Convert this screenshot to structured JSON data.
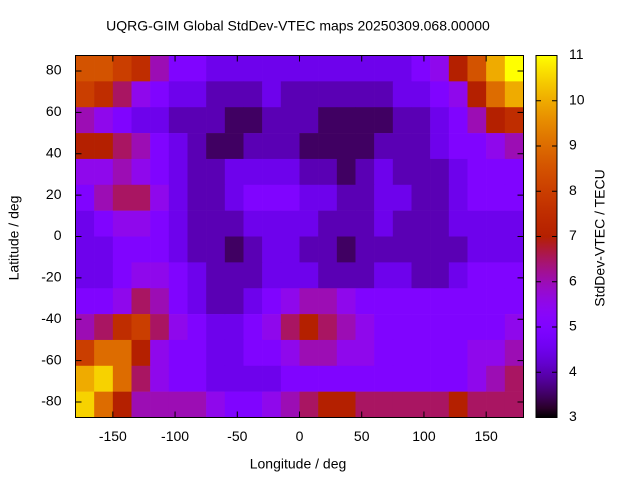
{
  "chart_data": {
    "type": "heatmap",
    "title": "UQRG-GIM Global StdDev-VTEC maps 20250309.068.00000",
    "xlabel": "Longitude / deg",
    "ylabel": "Latitude / deg",
    "colorbar_label": "StdDev-VTEC / TECU",
    "colormap": "gnuplot",
    "xlim": [
      -180,
      180
    ],
    "ylim": [
      -87.5,
      87.5
    ],
    "xticks": [
      -150,
      -100,
      -50,
      0,
      50,
      100,
      150
    ],
    "yticks": [
      -80,
      -60,
      -40,
      -20,
      0,
      20,
      40,
      60,
      80
    ],
    "clim": [
      3,
      11
    ],
    "cticks": [
      3,
      4,
      5,
      6,
      7,
      8,
      9,
      10,
      11
    ],
    "x": [
      -172.5,
      -157.5,
      -142.5,
      -127.5,
      -112.5,
      -97.5,
      -82.5,
      -67.5,
      -52.5,
      -37.5,
      -22.5,
      -7.5,
      7.5,
      22.5,
      37.5,
      52.5,
      67.5,
      82.5,
      97.5,
      112.5,
      127.5,
      142.5,
      157.5,
      172.5
    ],
    "y": [
      81.25,
      68.75,
      56.25,
      43.75,
      31.25,
      18.75,
      6.25,
      -6.25,
      -18.75,
      -31.25,
      -43.75,
      -56.25,
      -68.75,
      -81.25
    ],
    "z": [
      [
        8.5,
        8.5,
        8,
        7.5,
        6,
        5,
        5,
        4.5,
        4.5,
        4.5,
        4.5,
        4.5,
        4.5,
        4.5,
        4.5,
        4.5,
        4.5,
        4.5,
        5,
        5.5,
        7,
        8.5,
        10,
        11
      ],
      [
        8,
        7.5,
        6.5,
        5.5,
        5,
        4.5,
        4.5,
        4,
        4,
        4,
        4.5,
        4,
        4,
        4,
        4,
        4,
        4,
        4.5,
        4.5,
        5,
        5.5,
        7,
        9,
        10
      ],
      [
        6,
        5.5,
        5,
        4.5,
        4.5,
        4,
        4,
        4,
        3.5,
        3.5,
        4,
        4,
        4,
        3.5,
        3.5,
        3.5,
        3.5,
        4,
        4,
        4.5,
        5,
        6,
        7,
        7.5
      ],
      [
        7,
        7,
        6.5,
        6,
        5,
        4.5,
        4,
        3.5,
        3.5,
        4,
        4,
        4,
        3.5,
        3.5,
        3.5,
        3.5,
        4,
        4,
        4,
        4.5,
        5,
        5,
        5.5,
        6
      ],
      [
        5.5,
        5.5,
        6,
        5.5,
        5,
        4.5,
        4,
        4,
        4.5,
        4.5,
        4.5,
        4.5,
        4,
        4,
        3.5,
        4,
        4.5,
        4,
        4,
        4,
        4.5,
        5,
        5,
        5
      ],
      [
        5,
        6,
        6.5,
        6.5,
        5.5,
        4.5,
        4,
        4,
        4.5,
        5,
        5,
        5,
        4.5,
        4.5,
        4,
        4,
        4.5,
        4.5,
        4,
        4,
        4.5,
        5,
        5,
        5
      ],
      [
        4.5,
        5,
        5.5,
        5.5,
        5,
        4.5,
        4,
        4,
        4,
        4.5,
        4.5,
        4.5,
        4.5,
        4,
        4,
        4,
        4.5,
        4,
        4,
        4,
        4.5,
        4.5,
        4.5,
        4.5
      ],
      [
        4.5,
        4.5,
        5,
        5,
        5,
        4.5,
        4,
        4,
        3.5,
        4,
        4.5,
        4.5,
        4,
        4,
        3.5,
        4,
        4,
        4,
        4,
        4,
        4,
        4.5,
        4.5,
        4.5
      ],
      [
        4.5,
        4.5,
        5,
        5.5,
        5.5,
        5,
        4.5,
        4,
        4,
        4,
        4.5,
        4.5,
        4.5,
        4,
        4,
        4,
        4.5,
        4.5,
        4,
        4,
        4.5,
        5,
        5,
        5
      ],
      [
        5,
        5,
        5.5,
        6.5,
        6,
        5,
        4.5,
        4,
        4,
        4.5,
        5,
        5.5,
        6,
        6,
        5.5,
        5,
        5,
        5,
        5,
        5,
        5,
        5,
        5,
        5
      ],
      [
        6,
        6.5,
        7.5,
        8,
        6.5,
        5.5,
        5,
        4.5,
        4.5,
        5,
        5.5,
        6.5,
        7,
        6.5,
        6,
        5.5,
        5,
        5,
        5,
        5,
        5,
        5,
        5,
        5.5
      ],
      [
        8,
        9,
        9,
        7,
        5.5,
        5,
        5,
        4.5,
        4.5,
        5,
        5,
        5.5,
        6,
        6,
        5.5,
        5.5,
        5,
        5,
        5,
        5,
        5,
        5.5,
        5.5,
        6
      ],
      [
        10,
        10.5,
        9,
        6.5,
        5.5,
        5,
        5,
        4.5,
        4.5,
        4.5,
        4.5,
        5,
        5,
        5,
        5,
        5,
        5,
        5,
        5,
        5,
        5,
        5.5,
        6,
        6.5
      ],
      [
        10.5,
        9,
        7,
        6,
        6,
        6,
        6,
        5.5,
        5,
        5,
        5.5,
        6,
        6.5,
        7,
        7,
        6.5,
        6.5,
        6.5,
        6.5,
        6.5,
        7,
        6.5,
        6.5,
        6.5
      ]
    ]
  }
}
